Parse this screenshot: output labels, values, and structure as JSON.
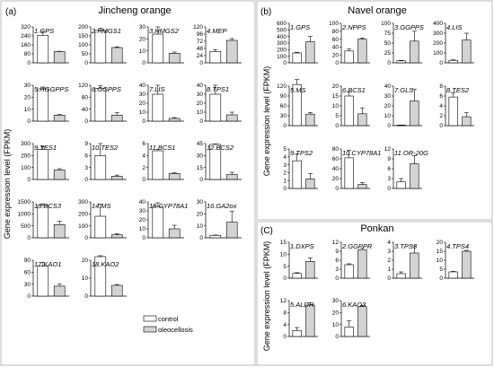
{
  "figure": {
    "y_label": "Gene expression level (FPKM)",
    "legend": {
      "control": "control",
      "oleocellosis": "oleocellosis"
    },
    "colors": {
      "control": "#ffffff",
      "oleocellosis": "#d3d3d3",
      "axis": "#000000"
    }
  },
  "chart_data": [
    {
      "type": "bar",
      "panel": "(a)",
      "title": "Jincheng orange",
      "ylabel": "Gene expression level (FPKM)",
      "series_names": [
        "control",
        "oleocellosis"
      ],
      "subplots": [
        {
          "label": "1.GPS",
          "ticks": [
            0,
            80,
            160,
            240,
            320
          ],
          "values": [
            245,
            100
          ],
          "errors": [
            35,
            3
          ]
        },
        {
          "label": "2.HMGS1",
          "ticks": [
            0,
            50,
            100,
            150,
            200
          ],
          "values": [
            180,
            85
          ],
          "errors": [
            12,
            4
          ]
        },
        {
          "label": "3.HMGS2",
          "ticks": [
            0,
            10,
            20,
            30
          ],
          "values": [
            24,
            8
          ],
          "errors": [
            6,
            1
          ]
        },
        {
          "label": "4.MEP",
          "ticks": [
            0,
            24,
            48,
            72,
            96,
            120
          ],
          "values": [
            38,
            75
          ],
          "errors": [
            6,
            6
          ]
        },
        {
          "label": "5.HGGPPS",
          "ticks": [
            0,
            10,
            20,
            30
          ],
          "values": [
            27,
            5
          ],
          "errors": [
            1.5,
            0.5
          ]
        },
        {
          "label": "6.GGPPS",
          "ticks": [
            0,
            40,
            80,
            120
          ],
          "values": [
            110,
            20
          ],
          "errors": [
            8,
            8
          ]
        },
        {
          "label": "7.LIS",
          "ticks": [
            0,
            10,
            20,
            30,
            40
          ],
          "values": [
            30,
            3
          ],
          "errors": [
            10,
            1
          ]
        },
        {
          "label": "8.TPS1",
          "ticks": [
            0,
            10,
            20,
            30,
            40
          ],
          "values": [
            30,
            7
          ],
          "errors": [
            10,
            3
          ]
        },
        {
          "label": "9.TES1",
          "ticks": [
            0,
            100,
            200,
            300
          ],
          "values": [
            250,
            80
          ],
          "errors": [
            25,
            10
          ]
        },
        {
          "label": "10.TES2",
          "ticks": [
            0,
            3,
            6,
            9
          ],
          "values": [
            6,
            0.8
          ],
          "errors": [
            3,
            0.3
          ]
        },
        {
          "label": "11.BCS1",
          "ticks": [
            0,
            2,
            4,
            6
          ],
          "values": [
            4.8,
            1
          ],
          "errors": [
            0.2,
            0.1
          ]
        },
        {
          "label": "12.BCS2",
          "ticks": [
            0,
            15,
            30,
            45
          ],
          "values": [
            44,
            6
          ],
          "errors": [
            0.5,
            3
          ]
        },
        {
          "label": "13.BCS3",
          "ticks": [
            0,
            500,
            1000,
            1500
          ],
          "values": [
            1350,
            550
          ],
          "errors": [
            70,
            150
          ]
        },
        {
          "label": "14.MS",
          "ticks": [
            0,
            100,
            200,
            300
          ],
          "values": [
            180,
            25
          ],
          "errors": [
            100,
            10
          ]
        },
        {
          "label": "15.CYP78A1",
          "ticks": [
            0,
            10,
            20,
            30,
            40
          ],
          "values": [
            35,
            10
          ],
          "errors": [
            4,
            4
          ]
        },
        {
          "label": "16.GA2ox",
          "ticks": [
            0,
            10,
            20,
            30
          ],
          "values": [
            2,
            13
          ],
          "errors": [
            0.3,
            9
          ]
        },
        {
          "label": "17.KAO1",
          "ticks": [
            0,
            30,
            60,
            90
          ],
          "values": [
            75,
            25
          ],
          "errors": [
            10,
            5
          ]
        },
        {
          "label": "18.KAO2",
          "ticks": [
            0,
            10,
            20
          ],
          "values": [
            22,
            6
          ],
          "errors": [
            0.5,
            0.5
          ]
        }
      ]
    },
    {
      "type": "bar",
      "panel": "(b)",
      "title": "Navel orange",
      "ylabel": "Gene expression level (FPKM)",
      "series_names": [
        "control",
        "oleocellosis"
      ],
      "subplots": [
        {
          "label": "1.GPS",
          "ticks": [
            0,
            100,
            200,
            300,
            400,
            500,
            600
          ],
          "values": [
            150,
            320
          ],
          "errors": [
            10,
            80
          ]
        },
        {
          "label": "2.NPPS",
          "ticks": [
            0,
            20,
            40,
            60,
            80,
            100
          ],
          "values": [
            30,
            60
          ],
          "errors": [
            5,
            3
          ]
        },
        {
          "label": "3.GGPPS",
          "ticks": [
            0,
            25,
            50,
            75,
            100
          ],
          "values": [
            5,
            55
          ],
          "errors": [
            1,
            25
          ]
        },
        {
          "label": "4.LIS",
          "ticks": [
            0,
            100,
            200,
            300,
            400
          ],
          "values": [
            25,
            230
          ],
          "errors": [
            5,
            70
          ]
        },
        {
          "label": "5.MS",
          "ticks": [
            0,
            30,
            60,
            90,
            120
          ],
          "values": [
            125,
            35
          ],
          "errors": [
            15,
            5
          ]
        },
        {
          "label": "6.BCS1",
          "ticks": [
            0,
            5,
            10,
            15,
            20
          ],
          "values": [
            15,
            6
          ],
          "errors": [
            2,
            3
          ]
        },
        {
          "label": "7.GLS",
          "ticks": [
            0,
            10,
            20,
            30,
            40
          ],
          "values": [
            0.5,
            25
          ],
          "errors": [
            0.1,
            12
          ]
        },
        {
          "label": "8.TES2",
          "ticks": [
            0,
            2,
            4,
            6,
            8
          ],
          "values": [
            5.8,
            1.8
          ],
          "errors": [
            0.8,
            0.8
          ]
        },
        {
          "label": "9.TPS2",
          "ticks": [
            0,
            1,
            2,
            3,
            4,
            5
          ],
          "values": [
            3.5,
            1.2
          ],
          "errors": [
            0.9,
            0.7
          ]
        },
        {
          "label": "10.CYP78A1",
          "ticks": [
            0,
            20,
            40,
            60,
            80
          ],
          "values": [
            62,
            8
          ],
          "errors": [
            15,
            4
          ]
        },
        {
          "label": "11.OR-20G",
          "ticks": [
            0,
            3,
            6,
            9,
            12
          ],
          "values": [
            2,
            7.5
          ],
          "errors": [
            1,
            2.5
          ]
        }
      ]
    },
    {
      "type": "bar",
      "panel": "(C)",
      "title": "Ponkan",
      "ylabel": "Gene expression level (FPKM)",
      "series_names": [
        "control",
        "oleocellosis"
      ],
      "subplots": [
        {
          "label": "1.DXPS",
          "ticks": [
            0,
            5,
            10,
            15
          ],
          "values": [
            2,
            7
          ],
          "errors": [
            0.3,
            1.5
          ]
        },
        {
          "label": "2.GGPPR",
          "ticks": [
            0,
            3,
            6,
            9,
            12
          ],
          "values": [
            4.5,
            9.5
          ],
          "errors": [
            0.3,
            0.5
          ]
        },
        {
          "label": "3.TPS3",
          "ticks": [
            0,
            1,
            2,
            3,
            4
          ],
          "values": [
            0.5,
            2.8
          ],
          "errors": [
            0.2,
            0.8
          ]
        },
        {
          "label": "4.TPS4",
          "ticks": [
            0,
            5,
            10,
            15,
            20
          ],
          "values": [
            3.5,
            15
          ],
          "errors": [
            0.3,
            0.5
          ]
        },
        {
          "label": "5.ALDH",
          "ticks": [
            0,
            4,
            8,
            12
          ],
          "values": [
            2,
            10.5
          ],
          "errors": [
            1,
            0.8
          ]
        },
        {
          "label": "6.KAO3",
          "ticks": [
            0,
            10,
            20,
            30
          ],
          "values": [
            8,
            25
          ],
          "errors": [
            5,
            1
          ]
        }
      ]
    }
  ]
}
